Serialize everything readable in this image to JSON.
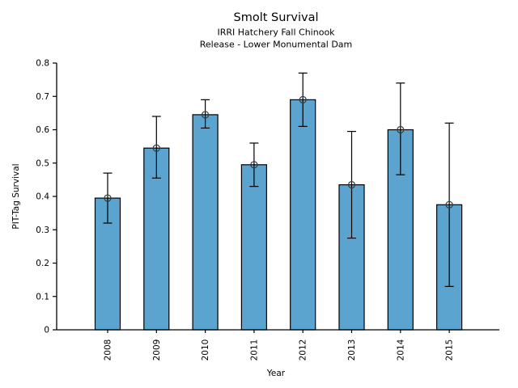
{
  "chart_data": {
    "type": "bar",
    "title": "Smolt Survival",
    "subtitle_line1": "IRRI Hatchery Fall Chinook",
    "subtitle_line2": "Release - Lower Monumental Dam",
    "xlabel": "Year",
    "ylabel": "PIT-Tag Survival",
    "categories": [
      "2008",
      "2009",
      "2010",
      "2011",
      "2012",
      "2013",
      "2014",
      "2015"
    ],
    "values": [
      0.395,
      0.545,
      0.645,
      0.495,
      0.69,
      0.435,
      0.6,
      0.375
    ],
    "error_low": [
      0.32,
      0.455,
      0.605,
      0.43,
      0.61,
      0.275,
      0.465,
      0.13
    ],
    "error_high": [
      0.47,
      0.64,
      0.69,
      0.56,
      0.77,
      0.595,
      0.74,
      0.62
    ],
    "ylim": [
      0,
      0.8
    ],
    "yticks": [
      0,
      0.1,
      0.2,
      0.3,
      0.4,
      0.5,
      0.6,
      0.7,
      0.8
    ],
    "ytick_labels": [
      "0",
      "0.1",
      "0.2",
      "0.3",
      "0.4",
      "0.5",
      "0.6",
      "0.7",
      "0.8"
    ],
    "grid": false,
    "legend": "none",
    "bar_color": "#5BA4CF",
    "bar_edge_color": "#000000",
    "errorbar_color": "#000000",
    "marker": "open-circle",
    "marker_color": "#3a3a3a",
    "axis_color": "#000000"
  }
}
